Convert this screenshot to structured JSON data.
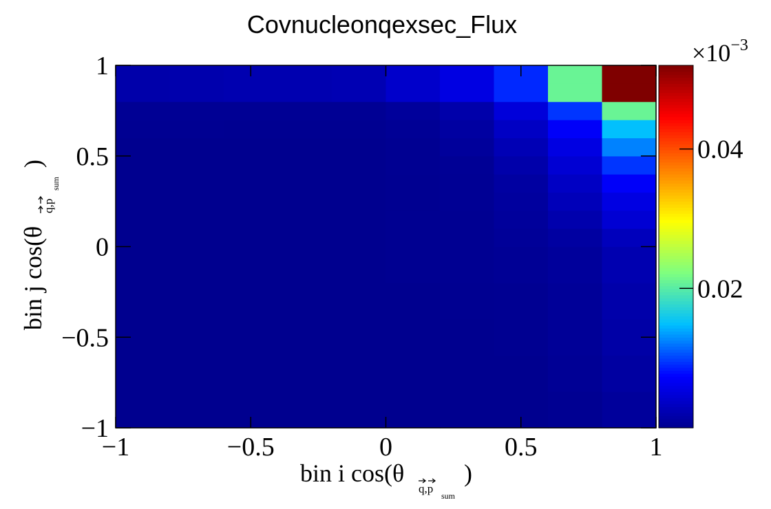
{
  "chart_data": {
    "type": "heatmap",
    "title": "Covnucleonqexsec_Flux",
    "xlabel": {
      "prefix": "bin i cos(",
      "theta": "θ",
      "subscript": "q,p",
      "subsubscript": "sum",
      "suffix": ")"
    },
    "ylabel": {
      "prefix": "bin j cos(",
      "theta": "θ",
      "subscript": "q,p",
      "subsubscript": "sum",
      "suffix": ")"
    },
    "xlim": [
      -1,
      1
    ],
    "ylim": [
      -1,
      1
    ],
    "x_ticks": [
      {
        "value": -1,
        "label": "−1"
      },
      {
        "value": -0.5,
        "label": "−0.5"
      },
      {
        "value": 0,
        "label": "0"
      },
      {
        "value": 0.5,
        "label": "0.5"
      },
      {
        "value": 1,
        "label": "1"
      }
    ],
    "y_ticks": [
      {
        "value": -1,
        "label": "−1"
      },
      {
        "value": -0.5,
        "label": "−0.5"
      },
      {
        "value": 0,
        "label": "0"
      },
      {
        "value": 0.5,
        "label": "0.5"
      },
      {
        "value": 1,
        "label": "1"
      }
    ],
    "x_bin_edges": [
      -1,
      -0.8,
      -0.6,
      -0.4,
      -0.2,
      0,
      0.2,
      0.4,
      0.6,
      0.8,
      1
    ],
    "y_bin_edges": [
      -1,
      -0.8,
      -0.6,
      -0.4,
      -0.2,
      0,
      0.1,
      0.2,
      0.3,
      0.4,
      0.5,
      0.6,
      0.7,
      0.8,
      0.9,
      1
    ],
    "z_values": [
      [
        0.0,
        0.0,
        0.0,
        0.0,
        0.0,
        0.0,
        0.0,
        0.0,
        0.0002,
        0.0008
      ],
      [
        0.0,
        0.0,
        0.0,
        0.0,
        0.0,
        0.0,
        0.0,
        0.0,
        0.0004,
        0.0012
      ],
      [
        0.0,
        0.0,
        0.0,
        0.0,
        0.0,
        0.0,
        0.0,
        0.0001,
        0.0005,
        0.0015
      ],
      [
        0.0,
        0.0,
        0.0,
        0.0,
        0.0,
        0.0,
        0.0001,
        0.0002,
        0.0006,
        0.0018
      ],
      [
        0.0,
        0.0,
        0.0,
        0.0,
        0.0,
        0.0001,
        0.0002,
        0.0004,
        0.0008,
        0.0022
      ],
      [
        0.0,
        0.0,
        0.0,
        0.0,
        0.0,
        0.0001,
        0.0002,
        0.0006,
        0.0012,
        0.003
      ],
      [
        0.0,
        0.0,
        0.0,
        0.0,
        0.0,
        0.0001,
        0.0002,
        0.0008,
        0.002,
        0.0045
      ],
      [
        0.0,
        0.0,
        0.0,
        0.0,
        0.0,
        0.0001,
        0.0003,
        0.001,
        0.0028,
        0.0055
      ],
      [
        0.0,
        0.0,
        0.0,
        0.0,
        0.0,
        0.0001,
        0.0003,
        0.0012,
        0.0035,
        0.007
      ],
      [
        0.0,
        0.0,
        0.0,
        0.0,
        0.0,
        0.0002,
        0.0004,
        0.0018,
        0.0045,
        0.0095
      ],
      [
        0.0,
        0.0,
        0.0,
        0.0,
        0.0,
        0.0002,
        0.0008,
        0.0025,
        0.0055,
        0.0125
      ],
      [
        0.0002,
        0.0002,
        0.0001,
        0.0001,
        0.0001,
        0.0004,
        0.0012,
        0.0035,
        0.007,
        0.015
      ],
      [
        0.0003,
        0.0003,
        0.0003,
        0.0003,
        0.0003,
        0.0008,
        0.0018,
        0.005,
        0.0095,
        0.021
      ],
      [
        0.0018,
        0.002,
        0.0022,
        0.0022,
        0.0024,
        0.004,
        0.0055,
        0.009,
        0.021,
        0.052
      ],
      [
        0.0018,
        0.002,
        0.0022,
        0.0022,
        0.0024,
        0.004,
        0.0055,
        0.009,
        0.021,
        0.052
      ]
    ],
    "z_range": [
      0,
      0.052
    ],
    "colorbar": {
      "multiplier_label": "×10",
      "multiplier_exponent": "−3",
      "ticks": [
        {
          "value": 0.02,
          "label": "0.02"
        },
        {
          "value": 0.04,
          "label": "0.04"
        }
      ]
    },
    "colormap": [
      "#00008f",
      "#0000ff",
      "#00bfff",
      "#7fff7f",
      "#ffff00",
      "#ff7f00",
      "#ff0000",
      "#7f0000"
    ]
  }
}
